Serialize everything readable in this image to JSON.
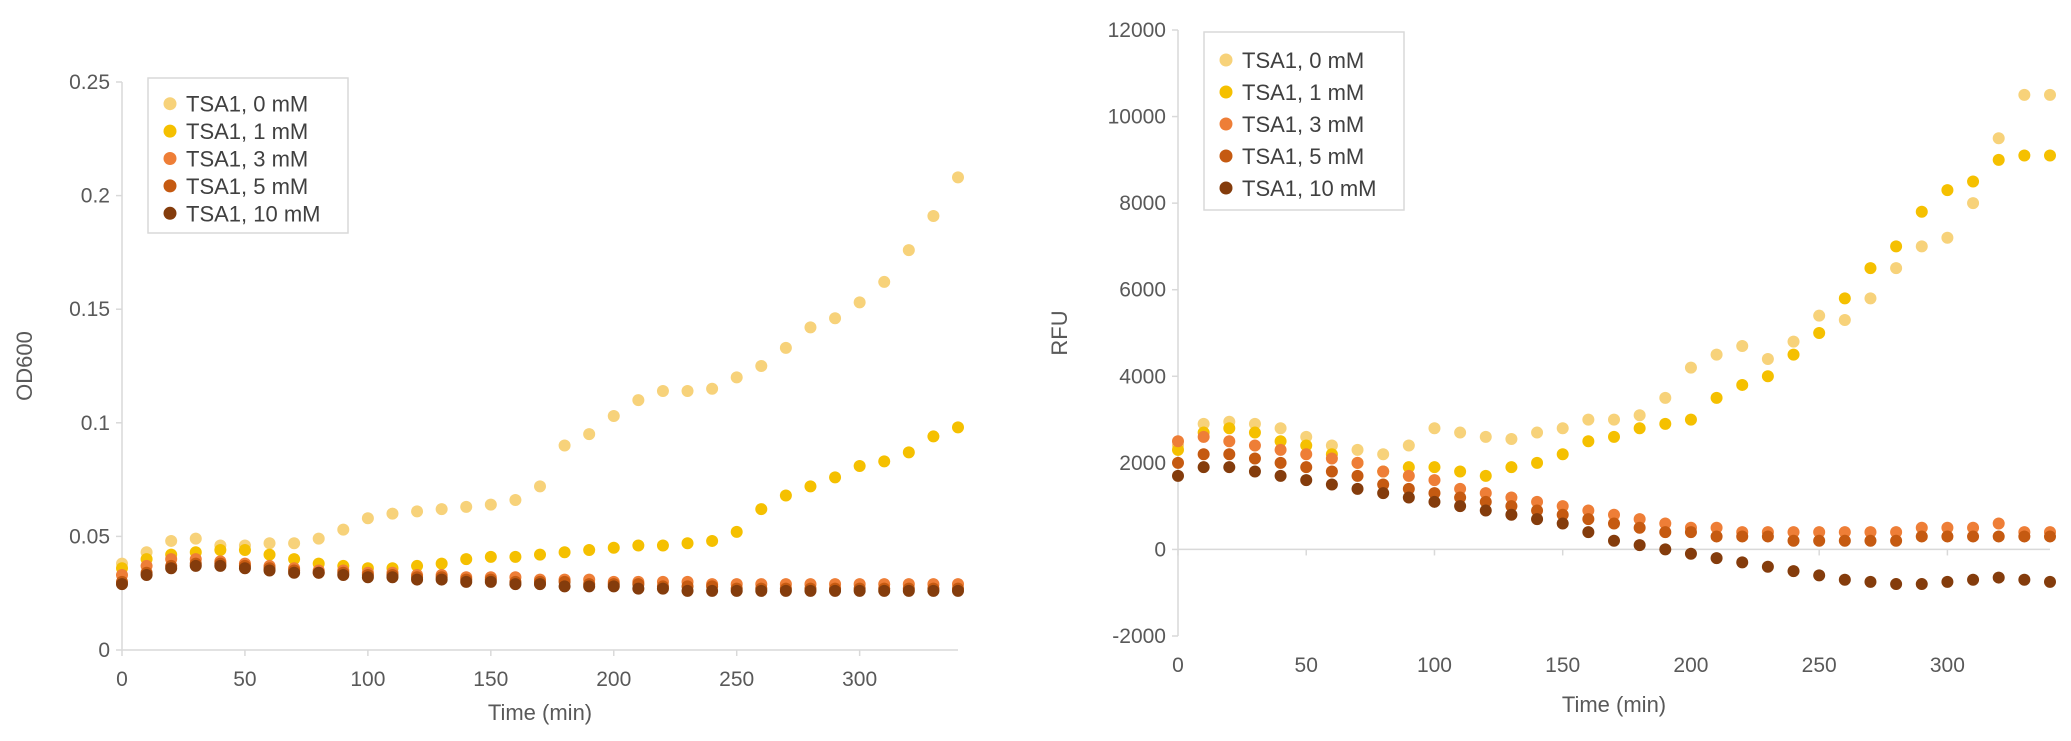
{
  "series_styles": [
    {
      "name": "TSA1, 0 mM",
      "color": "#F7D27A"
    },
    {
      "name": "TSA1, 1 mM",
      "color": "#F5C000"
    },
    {
      "name": "TSA1, 3 mM",
      "color": "#EE7E37"
    },
    {
      "name": "TSA1, 5 mM",
      "color": "#C55A11"
    },
    {
      "name": "TSA1, 10 mM",
      "color": "#843C0C"
    }
  ],
  "chart_data": [
    {
      "type": "scatter",
      "xlabel": "Time (min)",
      "ylabel": "OD600",
      "xlim": [
        0,
        340
      ],
      "ylim": [
        0,
        0.25
      ],
      "xticks": [
        "0",
        "50",
        "100",
        "150",
        "200",
        "250",
        "300"
      ],
      "yticks": [
        "0",
        "0.05",
        "0.1",
        "0.15",
        "0.2",
        "0.25"
      ],
      "grid": false,
      "legend": "top-left",
      "series": [
        {
          "name": "TSA1, 0 mM",
          "x": [
            0,
            10,
            20,
            30,
            40,
            50,
            60,
            70,
            80,
            90,
            100,
            110,
            120,
            130,
            140,
            150,
            160,
            170,
            180,
            190,
            200,
            210,
            220,
            230,
            240,
            250,
            260,
            270,
            280,
            290,
            300,
            310,
            320,
            330,
            340
          ],
          "y": [
            0.038,
            0.043,
            0.048,
            0.049,
            0.046,
            0.046,
            0.047,
            0.047,
            0.049,
            0.053,
            0.058,
            0.06,
            0.061,
            0.062,
            0.063,
            0.064,
            0.066,
            0.072,
            0.09,
            0.095,
            0.103,
            0.11,
            0.114,
            0.114,
            0.115,
            0.12,
            0.125,
            0.133,
            0.142,
            0.146,
            0.153,
            0.162,
            0.176,
            0.191,
            0.208
          ]
        },
        {
          "name": "TSA1, 1 mM",
          "x": [
            0,
            10,
            20,
            30,
            40,
            50,
            60,
            70,
            80,
            90,
            100,
            110,
            120,
            130,
            140,
            150,
            160,
            170,
            180,
            190,
            200,
            210,
            220,
            230,
            240,
            250,
            260,
            270,
            280,
            290,
            300,
            310,
            320,
            330,
            340
          ],
          "y": [
            0.036,
            0.04,
            0.042,
            0.043,
            0.044,
            0.044,
            0.042,
            0.04,
            0.038,
            0.037,
            0.036,
            0.036,
            0.037,
            0.038,
            0.04,
            0.041,
            0.041,
            0.042,
            0.043,
            0.044,
            0.045,
            0.046,
            0.046,
            0.047,
            0.048,
            0.052,
            0.062,
            0.068,
            0.072,
            0.076,
            0.081,
            0.083,
            0.087,
            0.094,
            0.098
          ]
        },
        {
          "name": "TSA1, 3 mM",
          "x": [
            0,
            10,
            20,
            30,
            40,
            50,
            60,
            70,
            80,
            90,
            100,
            110,
            120,
            130,
            140,
            150,
            160,
            170,
            180,
            190,
            200,
            210,
            220,
            230,
            240,
            250,
            260,
            270,
            280,
            290,
            300,
            310,
            320,
            330,
            340
          ],
          "y": [
            0.033,
            0.037,
            0.04,
            0.04,
            0.039,
            0.038,
            0.037,
            0.036,
            0.035,
            0.035,
            0.034,
            0.034,
            0.033,
            0.033,
            0.032,
            0.032,
            0.032,
            0.031,
            0.031,
            0.031,
            0.03,
            0.03,
            0.03,
            0.03,
            0.029,
            0.029,
            0.029,
            0.029,
            0.029,
            0.029,
            0.029,
            0.029,
            0.029,
            0.029,
            0.029
          ]
        },
        {
          "name": "TSA1, 5 mM",
          "x": [
            0,
            10,
            20,
            30,
            40,
            50,
            60,
            70,
            80,
            90,
            100,
            110,
            120,
            130,
            140,
            150,
            160,
            170,
            180,
            190,
            200,
            210,
            220,
            230,
            240,
            250,
            260,
            270,
            280,
            290,
            300,
            310,
            320,
            330,
            340
          ],
          "y": [
            0.03,
            0.034,
            0.037,
            0.038,
            0.038,
            0.037,
            0.036,
            0.035,
            0.034,
            0.034,
            0.033,
            0.033,
            0.032,
            0.032,
            0.031,
            0.031,
            0.03,
            0.03,
            0.03,
            0.029,
            0.029,
            0.029,
            0.028,
            0.028,
            0.028,
            0.027,
            0.027,
            0.027,
            0.027,
            0.027,
            0.027,
            0.027,
            0.027,
            0.027,
            0.027
          ]
        },
        {
          "name": "TSA1, 10 mM",
          "x": [
            0,
            10,
            20,
            30,
            40,
            50,
            60,
            70,
            80,
            90,
            100,
            110,
            120,
            130,
            140,
            150,
            160,
            170,
            180,
            190,
            200,
            210,
            220,
            230,
            240,
            250,
            260,
            270,
            280,
            290,
            300,
            310,
            320,
            330,
            340
          ],
          "y": [
            0.029,
            0.033,
            0.036,
            0.037,
            0.037,
            0.036,
            0.035,
            0.034,
            0.034,
            0.033,
            0.032,
            0.032,
            0.031,
            0.031,
            0.03,
            0.03,
            0.029,
            0.029,
            0.028,
            0.028,
            0.028,
            0.027,
            0.027,
            0.026,
            0.026,
            0.026,
            0.026,
            0.026,
            0.026,
            0.026,
            0.026,
            0.026,
            0.026,
            0.026,
            0.026
          ]
        }
      ]
    },
    {
      "type": "scatter",
      "xlabel": "Time (min)",
      "ylabel": "RFU",
      "xlim": [
        0,
        340
      ],
      "ylim": [
        -2000,
        12000
      ],
      "xticks": [
        "0",
        "50",
        "100",
        "150",
        "200",
        "250",
        "300"
      ],
      "yticks": [
        "-2000",
        "0",
        "2000",
        "4000",
        "6000",
        "8000",
        "10000",
        "12000"
      ],
      "grid": false,
      "legend": "top-left",
      "series": [
        {
          "name": "TSA1, 0 mM",
          "x": [
            0,
            10,
            20,
            30,
            40,
            50,
            60,
            70,
            80,
            90,
            100,
            110,
            120,
            130,
            140,
            150,
            160,
            170,
            180,
            190,
            200,
            210,
            220,
            230,
            240,
            250,
            260,
            270,
            280,
            290,
            300,
            310,
            320,
            330,
            340
          ],
          "y": [
            2400,
            2900,
            2950,
            2900,
            2800,
            2600,
            2400,
            2300,
            2200,
            2400,
            2800,
            2700,
            2600,
            2550,
            2700,
            2800,
            3000,
            3000,
            3100,
            3500,
            4200,
            4500,
            4700,
            4400,
            4800,
            5400,
            5300,
            5800,
            6500,
            7000,
            7200,
            8000,
            9500,
            10500,
            10500
          ]
        },
        {
          "name": "TSA1, 1 mM",
          "x": [
            0,
            10,
            20,
            30,
            40,
            50,
            60,
            70,
            80,
            90,
            100,
            110,
            120,
            130,
            140,
            150,
            160,
            170,
            180,
            190,
            200,
            210,
            220,
            230,
            240,
            250,
            260,
            270,
            280,
            290,
            300,
            310,
            320,
            330,
            340
          ],
          "y": [
            2300,
            2700,
            2800,
            2700,
            2500,
            2400,
            2200,
            2000,
            1800,
            1900,
            1900,
            1800,
            1700,
            1900,
            2000,
            2200,
            2500,
            2600,
            2800,
            2900,
            3000,
            3500,
            3800,
            4000,
            4500,
            5000,
            5800,
            6500,
            7000,
            7800,
            8300,
            8500,
            9000,
            9100,
            9100
          ]
        },
        {
          "name": "TSA1, 3 mM",
          "x": [
            0,
            10,
            20,
            30,
            40,
            50,
            60,
            70,
            80,
            90,
            100,
            110,
            120,
            130,
            140,
            150,
            160,
            170,
            180,
            190,
            200,
            210,
            220,
            230,
            240,
            250,
            260,
            270,
            280,
            290,
            300,
            310,
            320,
            330,
            340
          ],
          "y": [
            2500,
            2600,
            2500,
            2400,
            2300,
            2200,
            2100,
            2000,
            1800,
            1700,
            1600,
            1400,
            1300,
            1200,
            1100,
            1000,
            900,
            800,
            700,
            600,
            500,
            500,
            400,
            400,
            400,
            400,
            400,
            400,
            400,
            500,
            500,
            500,
            600,
            400,
            400
          ]
        },
        {
          "name": "TSA1, 5 mM",
          "x": [
            0,
            10,
            20,
            30,
            40,
            50,
            60,
            70,
            80,
            90,
            100,
            110,
            120,
            130,
            140,
            150,
            160,
            170,
            180,
            190,
            200,
            210,
            220,
            230,
            240,
            250,
            260,
            270,
            280,
            290,
            300,
            310,
            320,
            330,
            340
          ],
          "y": [
            2000,
            2200,
            2200,
            2100,
            2000,
            1900,
            1800,
            1700,
            1500,
            1400,
            1300,
            1200,
            1100,
            1000,
            900,
            800,
            700,
            600,
            500,
            400,
            400,
            300,
            300,
            300,
            200,
            200,
            200,
            200,
            200,
            300,
            300,
            300,
            300,
            300,
            300
          ]
        },
        {
          "name": "TSA1, 10 mM",
          "x": [
            0,
            10,
            20,
            30,
            40,
            50,
            60,
            70,
            80,
            90,
            100,
            110,
            120,
            130,
            140,
            150,
            160,
            170,
            180,
            190,
            200,
            210,
            220,
            230,
            240,
            250,
            260,
            270,
            280,
            290,
            300,
            310,
            320,
            330,
            340
          ],
          "y": [
            1700,
            1900,
            1900,
            1800,
            1700,
            1600,
            1500,
            1400,
            1300,
            1200,
            1100,
            1000,
            900,
            800,
            700,
            600,
            400,
            200,
            100,
            0,
            -100,
            -200,
            -300,
            -400,
            -500,
            -600,
            -700,
            -750,
            -800,
            -800,
            -750,
            -700,
            -650,
            -700,
            -750
          ]
        }
      ]
    }
  ]
}
